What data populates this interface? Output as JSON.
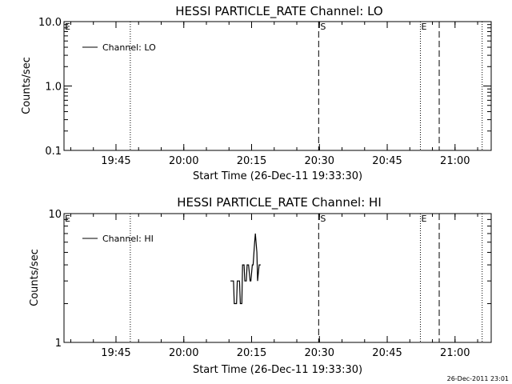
{
  "footer_timestamp": "26-Dec-2011 23:01",
  "chart_data": [
    {
      "type": "line",
      "title": "HESSI PARTICLE_RATE Channel: LO",
      "xlabel": "Start Time (26-Dec-11 19:33:30)",
      "ylabel": "Counts/sec",
      "yscale": "log",
      "ylim": [
        0.1,
        10.0
      ],
      "yticks": [
        "0.1",
        "1.0",
        "10.0"
      ],
      "xlim": [
        "19:33:30",
        "21:08:00"
      ],
      "xticks": [
        "19:45",
        "20:00",
        "20:15",
        "20:30",
        "20:45",
        "21:00"
      ],
      "legend": "top-left",
      "series": [
        {
          "name": "Channel: LO",
          "x": [],
          "values": []
        }
      ],
      "vertical_lines": [
        {
          "time": "19:48:10",
          "style": "dotted",
          "label": ""
        },
        {
          "time": "20:29:50",
          "style": "dashed",
          "label": "S"
        },
        {
          "time": "20:52:20",
          "style": "dotted",
          "label": ""
        },
        {
          "time": "20:56:30",
          "style": "dashed",
          "label": ""
        },
        {
          "time": "21:06:00",
          "style": "dotted",
          "label": ""
        }
      ],
      "edge_labels": [
        {
          "time": "19:33:30",
          "label": "E"
        },
        {
          "time": "20:52:20",
          "label": "E"
        }
      ]
    },
    {
      "type": "line",
      "title": "HESSI PARTICLE_RATE Channel: HI",
      "xlabel": "Start Time (26-Dec-11 19:33:30)",
      "ylabel": "Counts/sec",
      "yscale": "log",
      "ylim": [
        1,
        10
      ],
      "yticks": [
        "1",
        "10"
      ],
      "xlim": [
        "19:33:30",
        "21:08:00"
      ],
      "xticks": [
        "19:45",
        "20:00",
        "20:15",
        "20:30",
        "20:45",
        "21:00"
      ],
      "legend": "top-left",
      "series": [
        {
          "name": "Channel: HI",
          "x": [
            "20:10:20",
            "20:11:00",
            "20:11:10",
            "20:11:40",
            "20:11:50",
            "20:12:20",
            "20:12:30",
            "20:12:50",
            "20:13:00",
            "20:13:20",
            "20:13:30",
            "20:13:50",
            "20:14:00",
            "20:14:20",
            "20:14:40",
            "20:14:50",
            "20:15:10",
            "20:15:20",
            "20:15:40",
            "20:15:50",
            "20:16:10",
            "20:16:20",
            "20:16:40",
            "20:16:50",
            "20:17:00"
          ],
          "values": [
            3,
            3,
            2,
            2,
            3,
            3,
            2,
            2,
            4,
            4,
            3,
            3,
            4,
            4,
            3,
            3,
            4,
            4,
            6,
            7,
            5,
            3,
            4,
            4,
            4
          ]
        }
      ],
      "vertical_lines": [
        {
          "time": "19:48:10",
          "style": "dotted",
          "label": ""
        },
        {
          "time": "20:29:50",
          "style": "dashed",
          "label": "S"
        },
        {
          "time": "20:52:20",
          "style": "dotted",
          "label": ""
        },
        {
          "time": "20:56:30",
          "style": "dashed",
          "label": ""
        },
        {
          "time": "21:06:00",
          "style": "dotted",
          "label": ""
        }
      ],
      "edge_labels": [
        {
          "time": "19:33:30",
          "label": "E"
        },
        {
          "time": "20:52:20",
          "label": "E"
        }
      ]
    }
  ]
}
